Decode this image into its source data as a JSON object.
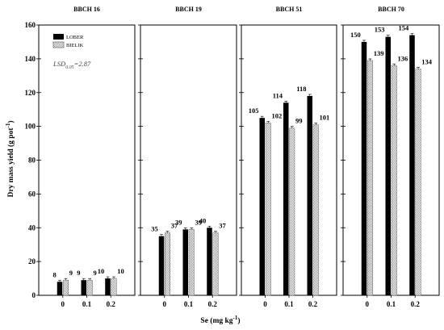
{
  "chart_data": {
    "type": "bar",
    "ylabel": "Dry mass yield (g pot",
    "ylabel_sup": "-1",
    "ylabel_end": ")",
    "xlabel": "Se (mg kg",
    "xlabel_sup": "-1",
    "xlabel_end": ")",
    "ylim": [
      0,
      160
    ],
    "yticks": [
      "0",
      "20",
      "40",
      "60",
      "80",
      "100",
      "120",
      "140",
      "160"
    ],
    "categories": [
      "0",
      "0.1",
      "0.2"
    ],
    "legend": {
      "placement": "top-left",
      "entries": [
        "LOBER",
        "BIELIK"
      ]
    },
    "lsd": {
      "text_main": "LSD",
      "text_sub": "0.05",
      "text_value": "=2.87"
    },
    "colors": {
      "LOBER": "#000000",
      "BIELIK": "#d6d6d6"
    },
    "panels": [
      {
        "title": "BBCH 16",
        "series": [
          {
            "name": "LOBER",
            "values": [
              8,
              9,
              10
            ]
          },
          {
            "name": "BIELIK",
            "values": [
              9,
              9,
              10
            ]
          }
        ]
      },
      {
        "title": "BBCH 19",
        "series": [
          {
            "name": "LOBER",
            "values": [
              35,
              39,
              40
            ]
          },
          {
            "name": "BIELIK",
            "values": [
              37,
              39,
              37
            ]
          }
        ]
      },
      {
        "title": "BBCH 51",
        "series": [
          {
            "name": "LOBER",
            "values": [
              105,
              114,
              118
            ]
          },
          {
            "name": "BIELIK",
            "values": [
              102,
              99,
              101
            ]
          }
        ]
      },
      {
        "title": "BBCH 70",
        "series": [
          {
            "name": "LOBER",
            "values": [
              150,
              153,
              154
            ]
          },
          {
            "name": "BIELIK",
            "values": [
              139,
              136,
              134
            ]
          }
        ]
      }
    ]
  }
}
